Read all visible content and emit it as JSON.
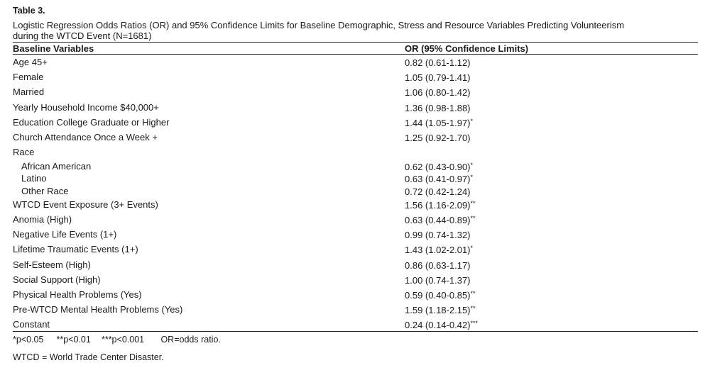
{
  "table_label": "Table 3.",
  "caption": "Logistic Regression Odds Ratios (OR) and 95% Confidence Limits for Baseline Demographic, Stress and Resource Variables Predicting Volunteerism during the WTCD Event (N=1681)",
  "columns": {
    "variables": "Baseline Variables",
    "or": "OR (95% Confidence Limits)"
  },
  "rows": [
    {
      "label": "Age 45+",
      "or": "0.82 (0.61-1.12)",
      "sig": ""
    },
    {
      "label": "Female",
      "or": "1.05 (0.79-1.41)",
      "sig": ""
    },
    {
      "label": "Married",
      "or": "1.06 (0.80-1.42)",
      "sig": ""
    },
    {
      "label": "Yearly Household Income $40,000+",
      "or": "1.36 (0.98-1.88)",
      "sig": ""
    },
    {
      "label": "Education College Graduate or Higher",
      "or": "1.44 (1.05-1.97)",
      "sig": "*"
    },
    {
      "label": "Church Attendance Once a Week +",
      "or": "1.25 (0.92-1.70)",
      "sig": ""
    },
    {
      "label": "Race",
      "or": "",
      "sig": ""
    },
    {
      "label": "African American",
      "or": "0.62 (0.43-0.90)",
      "sig": "*"
    },
    {
      "label": "Latino",
      "or": "0.63 (0.41-0.97)",
      "sig": "*"
    },
    {
      "label": "Other Race",
      "or": "0.72 (0.42-1.24)",
      "sig": ""
    },
    {
      "label": "WTCD Event Exposure (3+ Events)",
      "or": "1.56 (1.16-2.09)",
      "sig": "**"
    },
    {
      "label": "Anomia (High)",
      "or": "0.63 (0.44-0.89)",
      "sig": "**"
    },
    {
      "label": "Negative Life Events (1+)",
      "or": "0.99 (0.74-1.32)",
      "sig": ""
    },
    {
      "label": "Lifetime Traumatic Events (1+)",
      "or": "1.43 (1.02-2.01)",
      "sig": "*"
    },
    {
      "label": "Self-Esteem (High)",
      "or": "0.86 (0.63-1.17)",
      "sig": ""
    },
    {
      "label": "Social Support (High)",
      "or": "1.00 (0.74-1.37)",
      "sig": ""
    },
    {
      "label": "Physical Health Problems (Yes)",
      "or": "0.59 (0.40-0.85)",
      "sig": "**"
    },
    {
      "label": "Pre-WTCD Mental Health Problems (Yes)",
      "or": "1.59 (1.18-2.15)",
      "sig": "**"
    },
    {
      "label": "Constant",
      "or": "0.24 (0.14-0.42)",
      "sig": "***"
    }
  ],
  "footnotes": {
    "p05": "*p<0.05",
    "p01": "**p<0.01",
    "p001": "***p<0.001",
    "or_def": "OR=odds ratio."
  },
  "abbreviation": "WTCD = World Trade Center Disaster."
}
